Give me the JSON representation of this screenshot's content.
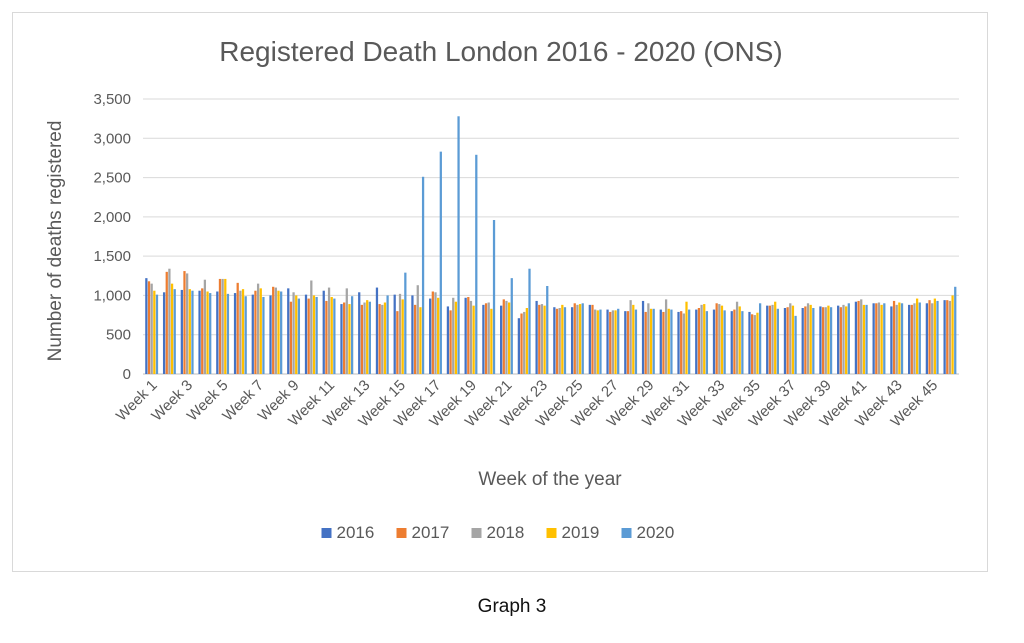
{
  "caption": "Graph 3",
  "chart_data": {
    "type": "bar",
    "title": "Registered Death London 2016 - 2020 (ONS)",
    "xlabel": "Week of the year",
    "ylabel": "Number of deaths registered",
    "ylim": [
      0,
      3500
    ],
    "yticks": [
      "0",
      "500",
      "1,000",
      "1,500",
      "2,000",
      "2,500",
      "3,000",
      "3,500"
    ],
    "grid": true,
    "legend_position": "bottom",
    "categories": [
      "Week 1",
      "Week 2",
      "Week 3",
      "Week 4",
      "Week 5",
      "Week 6",
      "Week 7",
      "Week 8",
      "Week 9",
      "Week 10",
      "Week 11",
      "Week 12",
      "Week 13",
      "Week 14",
      "Week 15",
      "Week 16",
      "Week 17",
      "Week 18",
      "Week 19",
      "Week 20",
      "Week 21",
      "Week 22",
      "Week 23",
      "Week 24",
      "Week 25",
      "Week 26",
      "Week 27",
      "Week 28",
      "Week 29",
      "Week 30",
      "Week 31",
      "Week 32",
      "Week 33",
      "Week 34",
      "Week 35",
      "Week 36",
      "Week 37",
      "Week 38",
      "Week 39",
      "Week 40",
      "Week 41",
      "Week 42",
      "Week 43",
      "Week 44",
      "Week 45",
      "Week 46"
    ],
    "shown_tick_labels": [
      "Week 1",
      "Week 3",
      "Week 5",
      "Week 7",
      "Week 9",
      "Week 11",
      "Week 13",
      "Week 15",
      "Week 17",
      "Week 19",
      "Week 21",
      "Week 23",
      "Week 25",
      "Week 27",
      "Week 29",
      "Week 31",
      "Week 33",
      "Week 35",
      "Week 37",
      "Week 39",
      "Week 41",
      "Week 43",
      "Week 45"
    ],
    "series": [
      {
        "name": "2016",
        "color": "#4472C4",
        "values": [
          1220,
          1040,
          1070,
          1060,
          1050,
          1030,
          1010,
          1000,
          1090,
          1010,
          1060,
          890,
          1040,
          1100,
          1010,
          1000,
          960,
          860,
          970,
          880,
          870,
          710,
          930,
          850,
          850,
          880,
          820,
          800,
          930,
          820,
          790,
          820,
          820,
          800,
          790,
          870,
          840,
          840,
          860,
          870,
          920,
          900,
          860,
          880,
          900,
          940
        ]
      },
      {
        "name": "2017",
        "color": "#ED7D31",
        "values": [
          1180,
          1300,
          1310,
          1090,
          1210,
          1160,
          1060,
          1110,
          920,
          960,
          930,
          910,
          880,
          890,
          800,
          880,
          1050,
          810,
          980,
          900,
          950,
          770,
          880,
          830,
          900,
          880,
          790,
          800,
          790,
          790,
          800,
          840,
          900,
          820,
          760,
          870,
          850,
          860,
          850,
          850,
          930,
          900,
          930,
          880,
          940,
          940
        ]
      },
      {
        "name": "2018",
        "color": "#A5A5A5",
        "values": [
          1150,
          1340,
          1280,
          1200,
          1210,
          1060,
          1150,
          1100,
          1040,
          1190,
          1100,
          1090,
          910,
          880,
          1020,
          1130,
          1040,
          970,
          930,
          910,
          930,
          790,
          890,
          840,
          880,
          820,
          810,
          940,
          900,
          950,
          770,
          880,
          890,
          920,
          750,
          880,
          900,
          900,
          850,
          880,
          950,
          910,
          880,
          900,
          900,
          930
        ]
      },
      {
        "name": "2019",
        "color": "#FFC000",
        "values": [
          1060,
          1150,
          1080,
          1050,
          1210,
          1080,
          1090,
          1060,
          1000,
          1000,
          980,
          890,
          940,
          910,
          950,
          850,
          970,
          920,
          870,
          830,
          910,
          840,
          870,
          880,
          890,
          810,
          810,
          880,
          830,
          830,
          920,
          890,
          870,
          860,
          780,
          920,
          870,
          880,
          870,
          860,
          880,
          880,
          910,
          960,
          960,
          1000
        ]
      },
      {
        "name": "2020",
        "color": "#5B9BD5",
        "values": [
          1010,
          1080,
          1060,
          1030,
          1020,
          990,
          980,
          1050,
          960,
          980,
          960,
          990,
          920,
          1000,
          1290,
          2510,
          2830,
          3280,
          2790,
          1960,
          1220,
          1340,
          1120,
          850,
          900,
          820,
          830,
          820,
          830,
          820,
          820,
          800,
          810,
          800,
          900,
          830,
          740,
          840,
          850,
          900,
          880,
          900,
          900,
          910,
          930,
          1110
        ]
      }
    ]
  }
}
